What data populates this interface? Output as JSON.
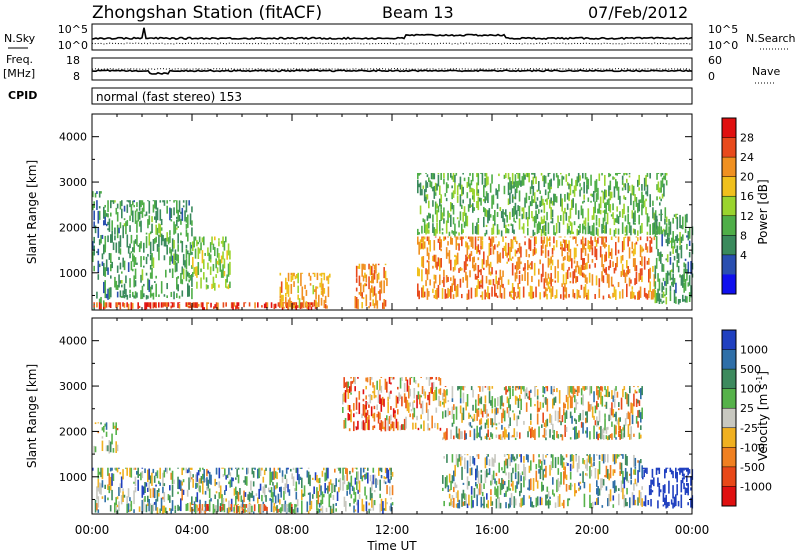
{
  "header": {
    "station": "Zhongshan Station (fitACF)",
    "beam": "Beam 13",
    "date": "07/Feb/2012"
  },
  "noise_panel": {
    "left_label": "N.Sky",
    "left_ticks": [
      "10^5",
      "10^0"
    ],
    "right_ticks": [
      "10^5",
      "10^0"
    ],
    "right_label": "N.Search"
  },
  "freq_panel": {
    "left_label_1": "Freq.",
    "left_label_2": "[MHz]",
    "left_ticks": [
      "18",
      "8"
    ],
    "right_ticks": [
      "60",
      "0"
    ],
    "right_label": "Nave"
  },
  "cpid": {
    "label": "CPID",
    "value": "normal (fast stereo) 153"
  },
  "power_panel": {
    "ylabel": "Slant Range [km]",
    "yticks": [
      "1000",
      "2000",
      "3000",
      "4000"
    ],
    "colorbar_label": "Power [dB]",
    "colorbar_ticks": [
      "4",
      "8",
      "12",
      "16",
      "20",
      "24",
      "28"
    ],
    "colors": [
      "#1010ee",
      "#2a4fb0",
      "#3a8a5c",
      "#4fae48",
      "#9ad42e",
      "#f0c01c",
      "#f09020",
      "#e84a1c",
      "#e01010"
    ]
  },
  "velocity_panel": {
    "ylabel": "Slant Range [km]",
    "yticks": [
      "1000",
      "2000",
      "3000",
      "4000"
    ],
    "colorbar_label": "Velocity [m s",
    "colorbar_label_sup": "-1",
    "colorbar_label_end": "]",
    "colorbar_ticks": [
      "1000",
      "500",
      "100",
      "25",
      "-25",
      "-100",
      "-500",
      "-1000"
    ],
    "colors": [
      "#2040c0",
      "#2f6fa8",
      "#3d8a5e",
      "#56b24a",
      "#c8c8c0",
      "#f0b020",
      "#f08020",
      "#e84818",
      "#e01010"
    ]
  },
  "x_axis": {
    "ticks": [
      "00:00",
      "04:00",
      "08:00",
      "12:00",
      "16:00",
      "20:00",
      "00:00"
    ],
    "label": "Time UT"
  },
  "chart_data": [
    {
      "type": "heatmap",
      "title": "Zhongshan Station (fitACF)",
      "ylabel": "Slant Range [km]",
      "xlabel": "Time UT",
      "x_range_hours": [
        0,
        24
      ],
      "ylim": [
        180,
        4500
      ],
      "colorbar": "Power [dB]",
      "colorbar_range": [
        0,
        30
      ],
      "echo_regions": [
        {
          "t_start": 0.0,
          "t_end": 0.5,
          "range_min": 180,
          "range_max": 2800,
          "value": 8
        },
        {
          "t_start": 0.0,
          "t_end": 9.0,
          "range_min": 180,
          "range_max": 350,
          "value": 26
        },
        {
          "t_start": 0.5,
          "t_end": 4.0,
          "range_min": 400,
          "range_max": 2600,
          "value": 10
        },
        {
          "t_start": 4.0,
          "t_end": 5.5,
          "range_min": 600,
          "range_max": 1800,
          "value": 14
        },
        {
          "t_start": 7.5,
          "t_end": 9.5,
          "range_min": 200,
          "range_max": 1000,
          "value": 20
        },
        {
          "t_start": 10.5,
          "t_end": 11.8,
          "range_min": 200,
          "range_max": 1200,
          "value": 22
        },
        {
          "t_start": 13.0,
          "t_end": 22.5,
          "range_min": 400,
          "range_max": 1800,
          "value": 22
        },
        {
          "t_start": 13.0,
          "t_end": 23.0,
          "range_min": 1800,
          "range_max": 3200,
          "value": 12
        },
        {
          "t_start": 22.5,
          "t_end": 24.0,
          "range_min": 300,
          "range_max": 2300,
          "value": 10
        }
      ]
    },
    {
      "type": "heatmap",
      "title": "Zhongshan Station (fitACF)",
      "ylabel": "Slant Range [km]",
      "xlabel": "Time UT",
      "x_range_hours": [
        0,
        24
      ],
      "ylim": [
        180,
        4500
      ],
      "colorbar": "Velocity [m s-1]",
      "colorbar_range": [
        -1000,
        1000
      ],
      "echo_regions": [
        {
          "t_start": 0.0,
          "t_end": 1.0,
          "range_min": 1500,
          "range_max": 2200,
          "value": 0
        },
        {
          "t_start": 0.0,
          "t_end": 12.0,
          "range_min": 180,
          "range_max": 1200,
          "value": 100
        },
        {
          "t_start": 4.0,
          "t_end": 8.0,
          "range_min": 180,
          "range_max": 400,
          "value": -100
        },
        {
          "t_start": 10.0,
          "t_end": 14.0,
          "range_min": 2000,
          "range_max": 3200,
          "value": -150
        },
        {
          "t_start": 14.0,
          "t_end": 22.0,
          "range_min": 1800,
          "range_max": 3000,
          "value": 0
        },
        {
          "t_start": 14.0,
          "t_end": 22.0,
          "range_min": 300,
          "range_max": 1500,
          "value": 80
        },
        {
          "t_start": 22.0,
          "t_end": 24.0,
          "range_min": 300,
          "range_max": 1200,
          "value": 600
        }
      ]
    }
  ]
}
